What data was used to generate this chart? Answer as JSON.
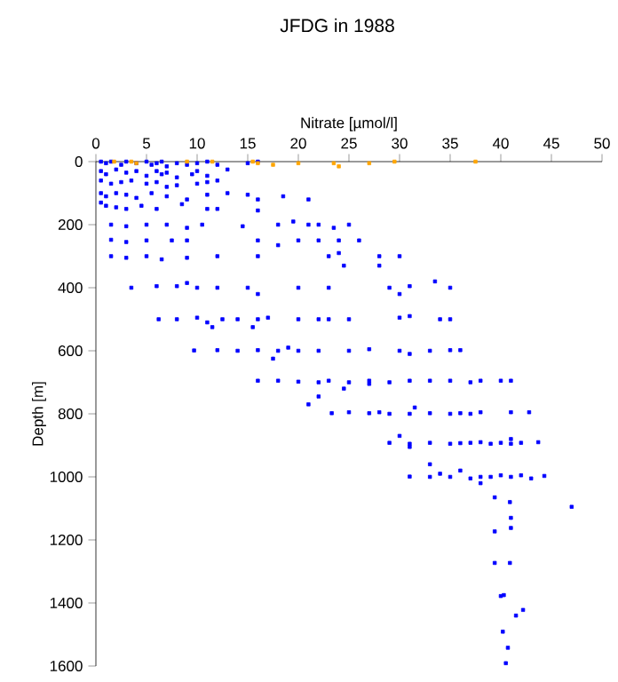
{
  "chart_data": {
    "type": "scatter",
    "title": "JFDG in 1988",
    "xlabel": "Nitrate [µmol/l]",
    "ylabel": "Depth [m]",
    "xlim": [
      0,
      50
    ],
    "xticks": [
      0,
      5,
      10,
      15,
      20,
      25,
      30,
      35,
      40,
      45,
      50
    ],
    "ylim": [
      1600,
      0
    ],
    "yticks": [
      0,
      200,
      400,
      600,
      800,
      1000,
      1200,
      1400,
      1600
    ],
    "marker": "square",
    "series": [
      {
        "color": "#0000ff",
        "x": [
          0.5,
          1,
          1.5,
          2.5,
          3,
          4,
          5,
          5.5,
          6,
          6.5,
          7,
          8,
          9,
          10,
          11,
          12,
          15,
          16,
          0.5,
          1,
          2,
          3,
          4,
          5,
          6,
          6.5,
          7,
          8,
          9.5,
          10,
          11,
          13,
          0.5,
          1.5,
          2.5,
          3.5,
          5,
          6,
          7,
          8,
          10,
          11,
          12,
          0.5,
          1,
          2,
          3,
          4,
          5.5,
          7,
          9,
          11,
          13,
          15,
          16,
          18.5,
          21,
          0.5,
          1,
          2,
          3,
          4.5,
          6,
          8.5,
          11,
          12,
          16,
          1.5,
          3,
          5,
          7,
          9,
          10.5,
          14.5,
          18,
          19.5,
          21,
          22,
          23.5,
          25,
          1.5,
          3,
          5,
          7.5,
          9,
          16,
          18,
          20,
          22,
          24,
          26,
          1.5,
          3,
          5,
          6.5,
          9,
          12,
          16,
          23,
          24,
          28,
          30,
          24.5,
          28,
          3.5,
          6,
          8,
          10,
          12,
          15,
          16,
          20,
          23,
          29,
          30,
          31,
          33.5,
          35,
          9,
          6.2,
          8,
          10,
          11,
          12.5,
          14,
          16,
          17,
          20,
          22,
          23,
          25,
          30,
          31,
          34,
          35,
          11.5,
          15.5,
          9.7,
          12,
          14,
          16,
          18,
          19,
          20,
          22,
          25,
          27,
          30,
          31,
          33,
          35,
          36,
          17.5,
          16,
          18,
          20,
          22,
          23,
          25,
          27,
          29,
          31,
          33,
          35,
          37,
          38,
          40,
          41,
          24.5,
          27,
          23.3,
          25,
          27,
          29,
          31,
          33,
          35,
          36,
          37,
          38,
          41,
          42.8,
          21,
          22,
          31.5,
          28,
          29,
          31,
          33,
          35,
          36,
          37,
          38,
          39,
          40,
          41,
          42,
          43.7,
          30,
          31,
          41,
          31,
          33,
          34,
          35,
          37,
          38,
          39,
          40,
          41,
          42,
          43,
          44.3,
          38,
          33,
          36,
          47,
          39.4,
          40.9,
          41,
          41,
          39.4,
          39.4,
          40.9,
          40,
          40.3,
          42.2,
          41.5,
          40.2,
          40.7,
          40.5
        ],
        "values": [
          0,
          5,
          0,
          10,
          0,
          5,
          0,
          10,
          5,
          0,
          15,
          5,
          10,
          5,
          0,
          10,
          5,
          0,
          30,
          40,
          25,
          35,
          30,
          45,
          30,
          40,
          35,
          50,
          40,
          30,
          45,
          25,
          60,
          70,
          65,
          60,
          70,
          65,
          80,
          75,
          70,
          65,
          60,
          100,
          110,
          100,
          105,
          115,
          100,
          110,
          120,
          105,
          100,
          105,
          120,
          110,
          120,
          130,
          140,
          145,
          150,
          140,
          150,
          135,
          150,
          150,
          155,
          200,
          205,
          200,
          200,
          210,
          200,
          205,
          200,
          190,
          200,
          200,
          210,
          200,
          248,
          255,
          250,
          250,
          250,
          250,
          265,
          250,
          250,
          250,
          250,
          300,
          305,
          300,
          310,
          305,
          300,
          300,
          300,
          290,
          300,
          300,
          330,
          330,
          400,
          395,
          395,
          400,
          400,
          400,
          420,
          400,
          400,
          400,
          420,
          395,
          380,
          400,
          385,
          500,
          500,
          495,
          510,
          500,
          500,
          500,
          495,
          500,
          500,
          500,
          500,
          495,
          490,
          500,
          500,
          525,
          525,
          599,
          598,
          600,
          598,
          600,
          590,
          600,
          600,
          600,
          595,
          600,
          610,
          600,
          598,
          598,
          625,
          695,
          695,
          698,
          700,
          695,
          700,
          695,
          700,
          695,
          695,
          695,
          700,
          695,
          695,
          695,
          720,
          705,
          798,
          795,
          798,
          800,
          800,
          798,
          800,
          798,
          800,
          795,
          795,
          795,
          770,
          745,
          780,
          795,
          892,
          895,
          892,
          895,
          893,
          892,
          890,
          895,
          892,
          895,
          892,
          890,
          870,
          905,
          880,
          999,
          1000,
          990,
          1000,
          1005,
          1000,
          1000,
          995,
          1000,
          995,
          1005,
          997,
          1020,
          960,
          980,
          1095,
          1065,
          1080,
          1130,
          1162,
          1173,
          1273,
          1273,
          1378,
          1375,
          1422,
          1440,
          1491,
          1542,
          1591
        ]
      },
      {
        "color": "#ffa500",
        "x": [
          1.8,
          3.5,
          4,
          9,
          11.5,
          15.5,
          16,
          17.5,
          20,
          23.5,
          24,
          27,
          29.5,
          37.5
        ],
        "values": [
          0,
          0,
          5,
          0,
          0,
          0,
          5,
          10,
          5,
          5,
          15,
          5,
          0,
          0
        ]
      }
    ]
  }
}
